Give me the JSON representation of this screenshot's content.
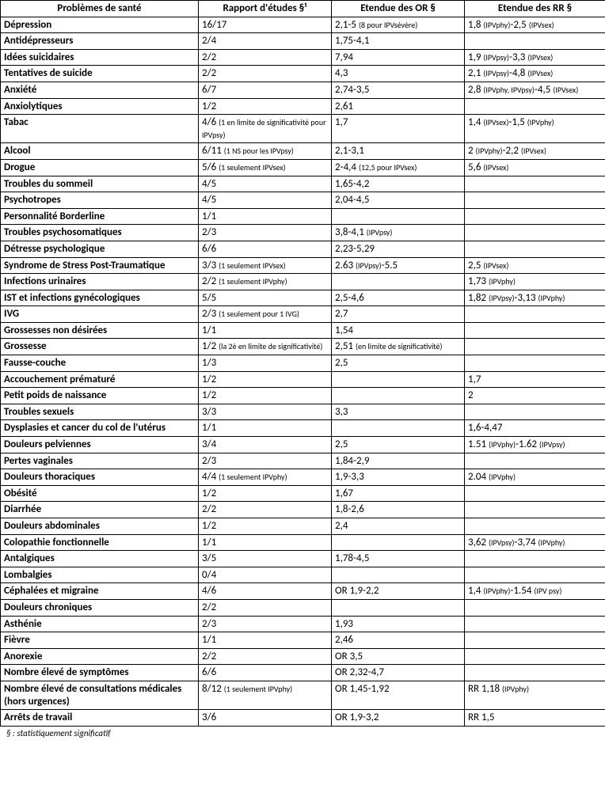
{
  "columns": [
    "Problèmes de santé",
    "Rapport d'études §¹",
    "Etendue des OR §",
    "Etendue des RR §"
  ],
  "rows": [
    {
      "label": "Dépression",
      "rapport": [
        {
          "main": "16/17"
        }
      ],
      "or": [
        {
          "main": "2,1-5 "
        },
        {
          "sub": "(8 pour IPVsévère)"
        }
      ],
      "rr": [
        {
          "main": "1,8 "
        },
        {
          "sub": "(IPVphy)"
        },
        {
          "main": "-2,5 "
        },
        {
          "sub": "(IPVsex)"
        }
      ]
    },
    {
      "label": "Antidépresseurs",
      "rapport": [
        {
          "main": "2/4"
        }
      ],
      "or": [
        {
          "main": "1,75-4,1"
        }
      ],
      "rr": []
    },
    {
      "label": "Idées suicidaires",
      "rapport": [
        {
          "main": "2/2"
        }
      ],
      "or": [
        {
          "main": "7,94"
        }
      ],
      "rr": [
        {
          "main": "1,9 "
        },
        {
          "sub": "(IPVpsy)"
        },
        {
          "main": "-3,3 "
        },
        {
          "sub": "(IPVsex)"
        }
      ]
    },
    {
      "label": "Tentatives de suicide",
      "rapport": [
        {
          "main": "2/2"
        }
      ],
      "or": [
        {
          "main": "4,3"
        }
      ],
      "rr": [
        {
          "main": "2,1 "
        },
        {
          "sub": "(IPVpsy)"
        },
        {
          "main": "-4,8 "
        },
        {
          "sub": "(IPVsex)"
        }
      ]
    },
    {
      "label": "Anxiété",
      "rapport": [
        {
          "main": "6/7"
        }
      ],
      "or": [
        {
          "main": "2,74-3,5"
        }
      ],
      "rr": [
        {
          "main": "2,8 "
        },
        {
          "sub": "(IPVphy, IPVpsy)"
        },
        {
          "main": "-4,5 "
        },
        {
          "sub": "(IPVsex)"
        }
      ]
    },
    {
      "label": "Anxiolytiques",
      "rapport": [
        {
          "main": "1/2"
        }
      ],
      "or": [
        {
          "main": "2,61"
        }
      ],
      "rr": []
    },
    {
      "label": "Tabac",
      "rapport": [
        {
          "main": "4/6 "
        },
        {
          "sub": "(1 en limite de significativité pour IPVpsy)"
        }
      ],
      "or": [
        {
          "main": "1,7"
        }
      ],
      "rr": [
        {
          "main": "1,4 "
        },
        {
          "sub": "(IPVsex)"
        },
        {
          "main": "-1,5 "
        },
        {
          "sub": "(IPVphy)"
        }
      ]
    },
    {
      "label": "Alcool",
      "rapport": [
        {
          "main": "6/11 "
        },
        {
          "sub": "(1 NS pour les IPVpsy)"
        }
      ],
      "or": [
        {
          "main": "2,1-3,1"
        }
      ],
      "rr": [
        {
          "main": "2 "
        },
        {
          "sub": "(IPVphy)"
        },
        {
          "main": "-2,2 "
        },
        {
          "sub": "(IPVsex)"
        }
      ]
    },
    {
      "label": "Drogue",
      "rapport": [
        {
          "main": "5/6 "
        },
        {
          "sub": "(1 seulement IPVsex)"
        }
      ],
      "or": [
        {
          "main": "2-4,4 "
        },
        {
          "sub": "(12,5 pour IPVsex)"
        }
      ],
      "rr": [
        {
          "main": "5,6 "
        },
        {
          "sub": "(IPVsex)"
        }
      ]
    },
    {
      "label": "Troubles du sommeil",
      "rapport": [
        {
          "main": "4/5"
        }
      ],
      "or": [
        {
          "main": "1,65-4,2"
        }
      ],
      "rr": []
    },
    {
      "label": "Psychotropes",
      "rapport": [
        {
          "main": "4/5"
        }
      ],
      "or": [
        {
          "main": "2,04-4,5"
        }
      ],
      "rr": []
    },
    {
      "label": "Personnalité Borderline",
      "rapport": [
        {
          "main": "1/1"
        }
      ],
      "or": [],
      "rr": []
    },
    {
      "label": "Troubles psychosomatiques",
      "rapport": [
        {
          "main": "2/3"
        }
      ],
      "or": [
        {
          "main": "3,8-4,1 "
        },
        {
          "sub": "(IPVpsy)"
        }
      ],
      "rr": []
    },
    {
      "label": "Détresse psychologique",
      "rapport": [
        {
          "main": "6/6"
        }
      ],
      "or": [
        {
          "main": "2,23-5,29"
        }
      ],
      "rr": []
    },
    {
      "label": "Syndrome de Stress Post-Traumatique",
      "rapport": [
        {
          "main": "3/3 "
        },
        {
          "sub": "(1 seulement IPVsex)"
        }
      ],
      "or": [
        {
          "main": "2.63 "
        },
        {
          "sub": "(IPVpsy)"
        },
        {
          "main": "-5.5"
        }
      ],
      "rr": [
        {
          "main": "2,5 "
        },
        {
          "sub": "(IPVsex)"
        }
      ]
    },
    {
      "label": "Infections urinaires",
      "rapport": [
        {
          "main": "2/2 "
        },
        {
          "sub": "(1 seulement IPVphy)"
        }
      ],
      "or": [],
      "rr": [
        {
          "main": "1,73 "
        },
        {
          "sub": "(IPVphy)"
        }
      ]
    },
    {
      "label": "IST et infections gynécologiques",
      "rapport": [
        {
          "main": "5/5"
        }
      ],
      "or": [
        {
          "main": "2,5-4,6"
        }
      ],
      "rr": [
        {
          "main": "1,82 "
        },
        {
          "sub": "(IPVpsy)"
        },
        {
          "main": "-3,13 "
        },
        {
          "sub": "(IPVphy)"
        }
      ]
    },
    {
      "label": "IVG",
      "rapport": [
        {
          "main": "2/3 "
        },
        {
          "sub": "(1 seulement pour 1 IVG)"
        }
      ],
      "or": [
        {
          "main": "2,7"
        }
      ],
      "rr": []
    },
    {
      "label": "Grossesses non désirées",
      "rapport": [
        {
          "main": "1/1"
        }
      ],
      "or": [
        {
          "main": "1,54"
        }
      ],
      "rr": []
    },
    {
      "label": "Grossesse",
      "rapport": [
        {
          "main": "1/2 "
        },
        {
          "sub": "(la 2è en limite de significativité)"
        }
      ],
      "or": [
        {
          "main": "2,51 "
        },
        {
          "sub": "(en limite de significativité)"
        }
      ],
      "rr": []
    },
    {
      "label": "Fausse-couche",
      "rapport": [
        {
          "main": "1/3"
        }
      ],
      "or": [
        {
          "main": "2,5"
        }
      ],
      "rr": []
    },
    {
      "label": "Accouchement prématuré",
      "rapport": [
        {
          "main": "1/2"
        }
      ],
      "or": [],
      "rr": [
        {
          "main": "1,7"
        }
      ]
    },
    {
      "label": "Petit poids de naissance",
      "rapport": [
        {
          "main": "1/2"
        }
      ],
      "or": [],
      "rr": [
        {
          "main": "2"
        }
      ]
    },
    {
      "label": "Troubles sexuels",
      "rapport": [
        {
          "main": "3/3"
        }
      ],
      "or": [
        {
          "main": "3,3"
        }
      ],
      "rr": []
    },
    {
      "label": "Dysplasies et cancer du col de l'utérus",
      "rapport": [
        {
          "main": "1/1"
        }
      ],
      "or": [],
      "rr": [
        {
          "main": "1,6-4,47"
        }
      ]
    },
    {
      "label": "Douleurs pelviennes",
      "rapport": [
        {
          "main": "3/4"
        }
      ],
      "or": [
        {
          "main": "2,5"
        }
      ],
      "rr": [
        {
          "main": "1.51 "
        },
        {
          "sub": "(IPVphy)"
        },
        {
          "main": "-1.62 "
        },
        {
          "sub": "(IPVpsy)"
        }
      ]
    },
    {
      "label": "Pertes vaginales",
      "rapport": [
        {
          "main": "2/3"
        }
      ],
      "or": [
        {
          "main": "1,84-2,9"
        }
      ],
      "rr": []
    },
    {
      "label": "Douleurs thoraciques",
      "rapport": [
        {
          "main": "4/4 "
        },
        {
          "sub": "(1 seulement IPVphy)"
        }
      ],
      "or": [
        {
          "main": "1,9-3,3"
        }
      ],
      "rr": [
        {
          "main": "2.04 "
        },
        {
          "sub": "(IPVphy)"
        }
      ]
    },
    {
      "label": "Obésité",
      "rapport": [
        {
          "main": "1/2"
        }
      ],
      "or": [
        {
          "main": "1,67"
        }
      ],
      "rr": []
    },
    {
      "label": "Diarrhée",
      "rapport": [
        {
          "main": "2/2"
        }
      ],
      "or": [
        {
          "main": "1,8-2,6"
        }
      ],
      "rr": []
    },
    {
      "label": "Douleurs abdominales",
      "rapport": [
        {
          "main": "1/2"
        }
      ],
      "or": [
        {
          "main": "2,4"
        }
      ],
      "rr": []
    },
    {
      "label": "Colopathie fonctionnelle",
      "rapport": [
        {
          "main": "1/1"
        }
      ],
      "or": [],
      "rr": [
        {
          "main": "3,62 "
        },
        {
          "sub": "(IPVpsy)"
        },
        {
          "main": "-3,74 "
        },
        {
          "sub": "(IPVphy)"
        }
      ]
    },
    {
      "label": "Antalgiques",
      "rapport": [
        {
          "main": "3/5"
        }
      ],
      "or": [
        {
          "main": "1,78-4,5"
        }
      ],
      "rr": []
    },
    {
      "label": "Lombalgies",
      "rapport": [
        {
          "main": "0/4"
        }
      ],
      "or": [],
      "rr": []
    },
    {
      "label": "Céphalées et migraine",
      "rapport": [
        {
          "main": "4/6"
        }
      ],
      "or": [
        {
          "main": "OR 1,9-2,2"
        }
      ],
      "rr": [
        {
          "main": "1,4 "
        },
        {
          "sub": "(IPVphy)"
        },
        {
          "main": "-1.54 "
        },
        {
          "sub": "(IPV psy)"
        }
      ]
    },
    {
      "label": "Douleurs chroniques",
      "rapport": [
        {
          "main": "2/2"
        }
      ],
      "or": [],
      "rr": []
    },
    {
      "label": "Asthénie",
      "rapport": [
        {
          "main": "2/3"
        }
      ],
      "or": [
        {
          "main": "1,93"
        }
      ],
      "rr": []
    },
    {
      "label": "Fièvre",
      "rapport": [
        {
          "main": "1/1"
        }
      ],
      "or": [
        {
          "main": "2,46"
        }
      ],
      "rr": []
    },
    {
      "label": "Anorexie",
      "rapport": [
        {
          "main": "2/2"
        }
      ],
      "or": [
        {
          "main": "OR 3,5"
        }
      ],
      "rr": []
    },
    {
      "label": "Nombre élevé de symptômes",
      "rapport": [
        {
          "main": "6/6"
        }
      ],
      "or": [
        {
          "main": "OR 2,32-4,7"
        }
      ],
      "rr": []
    },
    {
      "label": "Nombre élevé de consultations médicales (hors urgences)",
      "rapport": [
        {
          "main": "8/12 "
        },
        {
          "sub": "(1 seulement IPVphy)"
        }
      ],
      "or": [
        {
          "main": "OR 1,45-1,92"
        }
      ],
      "rr": [
        {
          "main": "RR 1,18 "
        },
        {
          "sub": "(IPVphy)"
        }
      ]
    },
    {
      "label": "Arrêts de travail",
      "rapport": [
        {
          "main": "3/6"
        }
      ],
      "or": [
        {
          "main": "OR 1,9-3,2"
        }
      ],
      "rr": [
        {
          "main": "RR 1,5"
        }
      ]
    }
  ],
  "footnote": "§ : statistiquement significatif"
}
